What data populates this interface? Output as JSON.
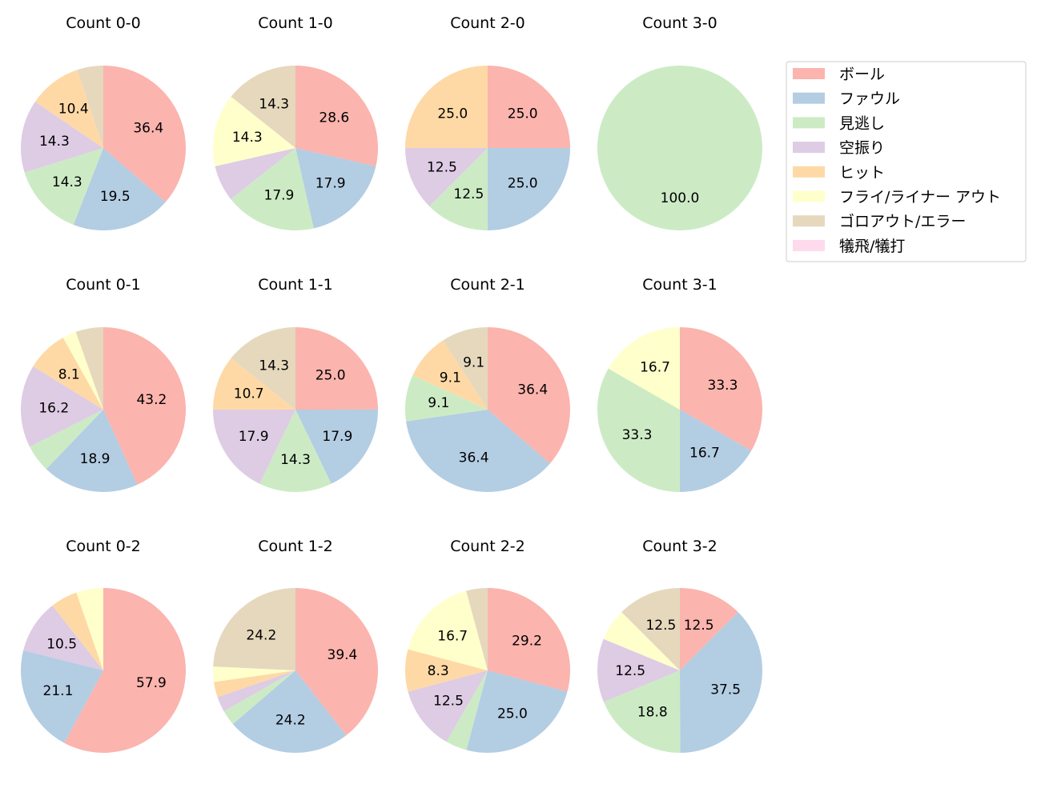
{
  "chart_data": {
    "type": "pie",
    "categories": [
      "ボール",
      "ファウル",
      "見逃し",
      "空振り",
      "ヒット",
      "フライ/ライナー アウト",
      "ゴロアウト/エラー",
      "犠飛/犠打"
    ],
    "colors": [
      "#fbb4ae",
      "#b3cde3",
      "#ccebc5",
      "#decbe4",
      "#fed9a6",
      "#ffffcc",
      "#e5d8bd",
      "#fddaec"
    ],
    "label_min_percent": 8,
    "legend_position": "top-right",
    "charts": [
      {
        "title": "Count 0-0",
        "values": [
          36.4,
          19.5,
          14.3,
          14.3,
          10.4,
          0,
          5.1,
          0
        ]
      },
      {
        "title": "Count 1-0",
        "values": [
          28.6,
          17.9,
          17.9,
          7.1,
          0,
          14.3,
          14.3,
          0
        ]
      },
      {
        "title": "Count 2-0",
        "values": [
          25.0,
          25.0,
          12.5,
          12.5,
          25.0,
          0,
          0,
          0
        ]
      },
      {
        "title": "Count 3-0",
        "values": [
          0,
          0,
          100.0,
          0,
          0,
          0,
          0,
          0
        ]
      },
      {
        "title": "Count 0-1",
        "values": [
          43.2,
          18.9,
          5.4,
          16.2,
          8.1,
          2.7,
          5.4,
          0
        ]
      },
      {
        "title": "Count 1-1",
        "values": [
          25.0,
          17.9,
          14.3,
          17.9,
          10.7,
          0,
          14.3,
          0
        ]
      },
      {
        "title": "Count 2-1",
        "values": [
          36.4,
          36.4,
          9.1,
          0,
          9.1,
          0,
          9.1,
          0
        ]
      },
      {
        "title": "Count 3-1",
        "values": [
          33.3,
          16.7,
          33.3,
          0,
          0,
          16.7,
          0,
          0
        ]
      },
      {
        "title": "Count 0-2",
        "values": [
          57.9,
          21.1,
          0,
          10.5,
          5.3,
          5.3,
          0,
          0
        ]
      },
      {
        "title": "Count 1-2",
        "values": [
          39.4,
          24.2,
          3.0,
          3.0,
          3.0,
          3.0,
          24.2,
          0
        ]
      },
      {
        "title": "Count 2-2",
        "values": [
          29.2,
          25.0,
          4.2,
          12.5,
          8.3,
          16.7,
          4.2,
          0
        ]
      },
      {
        "title": "Count 3-2",
        "values": [
          12.5,
          37.5,
          18.8,
          12.5,
          0,
          6.3,
          12.5,
          0
        ]
      }
    ]
  }
}
